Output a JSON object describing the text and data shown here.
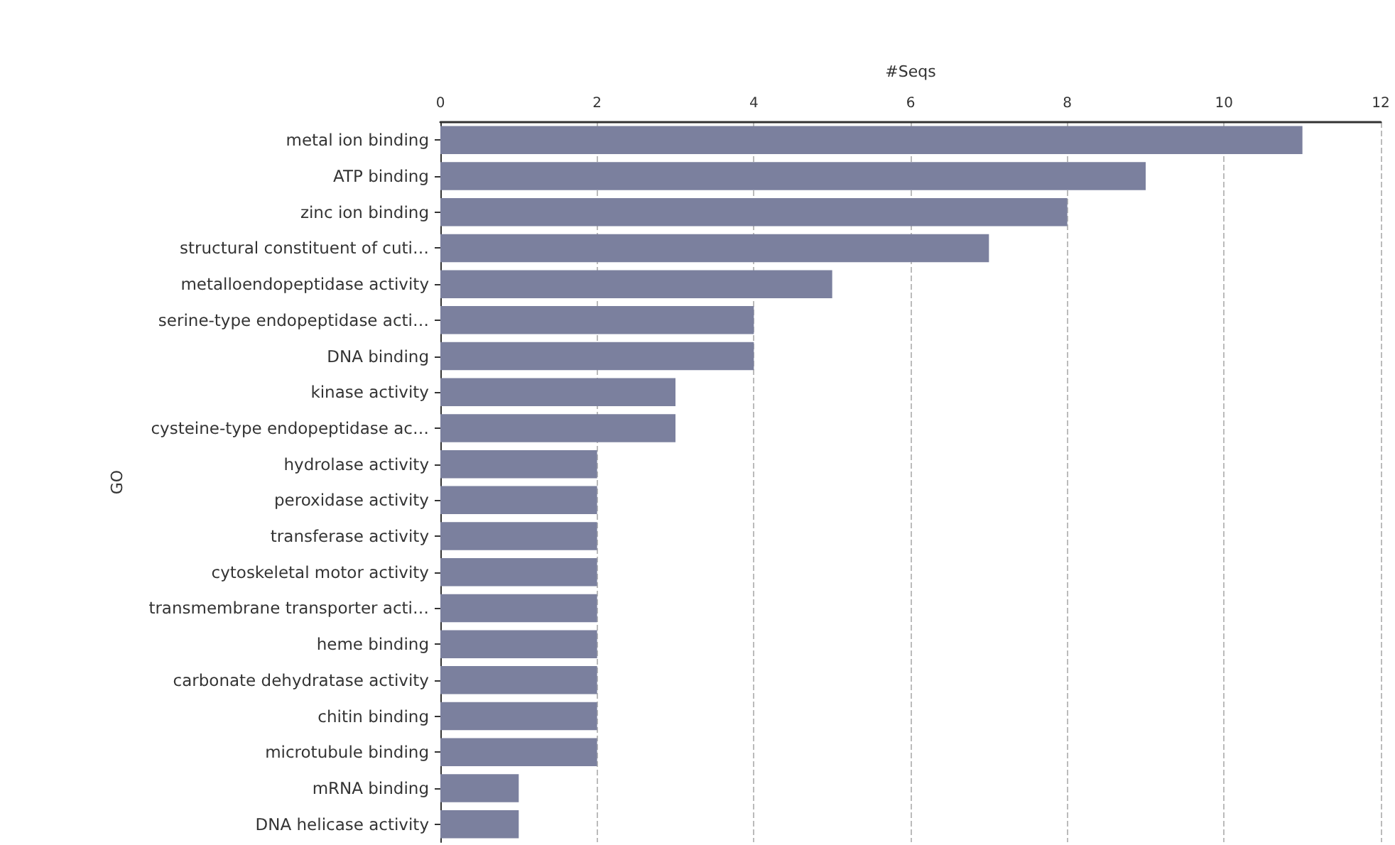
{
  "chart_data": {
    "type": "bar",
    "orientation": "horizontal",
    "xlabel": "#Seqs",
    "ylabel": "GO",
    "categories": [
      "metal ion binding",
      "ATP binding",
      "zinc ion binding",
      "structural constituent of cuti…",
      "metalloendopeptidase activity",
      "serine-type endopeptidase acti…",
      "DNA binding",
      "kinase activity",
      "cysteine-type endopeptidase ac…",
      "hydrolase activity",
      "peroxidase activity",
      "transferase activity",
      "cytoskeletal motor activity",
      "transmembrane transporter acti…",
      "heme binding",
      "carbonate dehydratase activity",
      "chitin binding",
      "microtubule binding",
      "mRNA binding",
      "DNA helicase activity"
    ],
    "values": [
      11,
      9,
      8,
      7,
      5,
      4,
      4,
      3,
      3,
      2,
      2,
      2,
      2,
      2,
      2,
      2,
      2,
      2,
      1,
      1
    ],
    "color": "#7b809e",
    "xlim": [
      0,
      12
    ],
    "xticks": [
      0,
      2,
      4,
      6,
      8,
      10,
      12
    ],
    "grid": "x"
  }
}
